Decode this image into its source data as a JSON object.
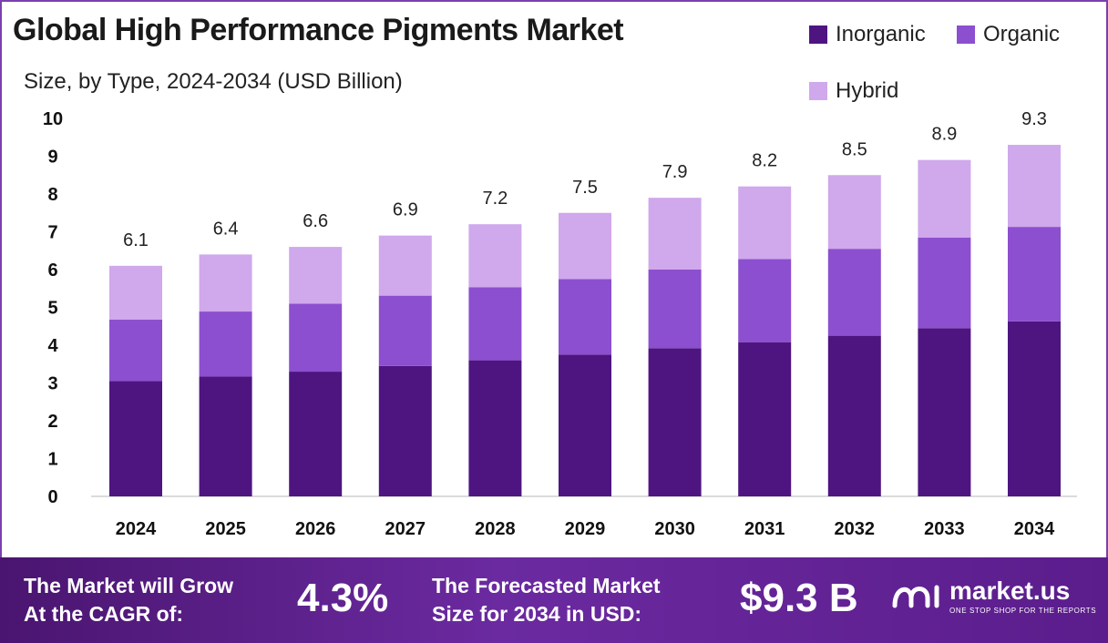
{
  "chart_data": {
    "type": "bar",
    "stacked": true,
    "title": "Global High Performance Pigments Market",
    "subtitle": "Size, by Type, 2024-2034 (USD Billion)",
    "categories": [
      "2024",
      "2025",
      "2026",
      "2027",
      "2028",
      "2029",
      "2030",
      "2031",
      "2032",
      "2033",
      "2034"
    ],
    "series": [
      {
        "name": "Inorganic",
        "color": "#4e1581",
        "values": [
          3.05,
          3.17,
          3.3,
          3.45,
          3.6,
          3.75,
          3.92,
          4.08,
          4.25,
          4.45,
          4.63
        ]
      },
      {
        "name": "Organic",
        "color": "#8c4fcf",
        "values": [
          1.63,
          1.72,
          1.8,
          1.86,
          1.93,
          2.0,
          2.08,
          2.2,
          2.3,
          2.4,
          2.5
        ]
      },
      {
        "name": "Hybrid",
        "color": "#d0a8ec",
        "values": [
          1.42,
          1.51,
          1.5,
          1.59,
          1.67,
          1.75,
          1.9,
          1.92,
          1.95,
          2.05,
          2.17
        ]
      }
    ],
    "totals": [
      "6.1",
      "6.4",
      "6.6",
      "6.9",
      "7.2",
      "7.5",
      "7.9",
      "8.2",
      "8.5",
      "8.9",
      "9.3"
    ],
    "yticks": [
      "0",
      "1",
      "2",
      "3",
      "4",
      "5",
      "6",
      "7",
      "8",
      "9",
      "10"
    ],
    "ylim": [
      0,
      10
    ],
    "grid": false,
    "legend_position": "top-right"
  },
  "footer": {
    "cagr_line1": "The Market will Grow",
    "cagr_line2": "At the CAGR of:",
    "cagr_value": "4.3%",
    "forecast_line1": "The Forecasted Market",
    "forecast_line2": "Size for 2034 in USD:",
    "forecast_value": "$9.3 B",
    "brand_name": "market.us",
    "brand_tagline": "ONE STOP SHOP FOR THE REPORTS"
  }
}
